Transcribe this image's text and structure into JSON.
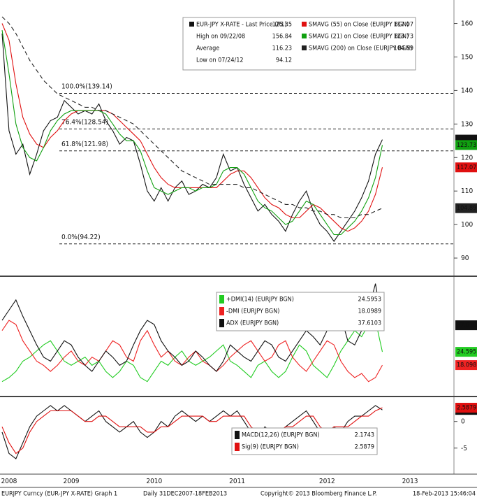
{
  "chart_data": [
    {
      "type": "line",
      "ylim": [
        85,
        167
      ],
      "yticks": [
        90,
        100,
        110,
        120,
        130,
        140,
        150,
        160
      ],
      "series": [
        {
          "name": "EUR-JPY X-RATE - Last Price (R1)",
          "color": "#111111",
          "values": [
            157,
            128,
            121,
            124,
            115,
            121,
            128,
            131,
            132,
            137,
            135,
            133,
            134,
            133,
            136,
            131,
            128,
            124,
            126,
            125,
            118,
            110,
            107,
            111,
            107,
            111,
            113,
            109,
            110,
            112,
            111,
            114,
            121,
            116,
            117,
            112,
            108,
            104,
            106,
            103,
            101,
            98,
            103,
            107,
            110,
            104,
            100,
            98,
            95,
            98,
            101,
            104,
            108,
            113,
            121,
            125.35,
            null,
            null,
            null,
            null,
            null,
            null,
            null,
            null,
            null,
            null
          ]
        },
        {
          "name": "SMAVG (55) on Close (EURJPY BGN)",
          "color": "#e01010",
          "values": [
            160,
            155,
            142,
            132,
            127,
            124,
            123,
            126,
            128,
            131,
            133,
            134,
            134,
            134,
            134,
            134,
            133,
            131,
            129,
            127,
            125,
            121,
            117,
            114,
            112,
            111,
            111,
            111,
            111,
            111,
            111,
            111,
            113,
            115,
            116,
            116,
            114,
            111,
            108,
            106,
            105,
            103,
            102,
            102,
            104,
            106,
            105,
            103,
            101,
            99,
            98,
            99,
            101,
            104,
            109,
            117.07,
            null,
            null,
            null,
            null,
            null,
            null,
            null,
            null,
            null,
            null
          ]
        },
        {
          "name": "SMAVG (21) on Close (EURJPY BGN)",
          "color": "#10a010",
          "values": [
            158,
            145,
            130,
            123,
            120,
            119,
            123,
            128,
            131,
            133,
            134,
            134,
            134,
            134,
            134,
            133,
            130,
            127,
            125,
            125,
            122,
            116,
            111,
            110,
            109,
            110,
            111,
            111,
            110,
            111,
            111,
            112,
            116,
            117,
            117,
            115,
            111,
            107,
            105,
            104,
            102,
            100,
            101,
            104,
            107,
            106,
            103,
            100,
            97,
            97,
            99,
            101,
            104,
            108,
            114,
            123.73,
            null,
            null,
            null,
            null,
            null,
            null,
            null,
            null,
            null,
            null
          ]
        },
        {
          "name": "SMAVG (200) on Close (EURJPY BGN)",
          "color": "#222222",
          "dash": true,
          "values": [
            162,
            160,
            157,
            153,
            149,
            146,
            143,
            141,
            139,
            138,
            137,
            136,
            135,
            135,
            134,
            134,
            133,
            132,
            131,
            130,
            128,
            126,
            124,
            122,
            120,
            118,
            116,
            115,
            114,
            113,
            112,
            112,
            112,
            112,
            112,
            111,
            111,
            110,
            109,
            108,
            107,
            106,
            106,
            105,
            105,
            104,
            104,
            103,
            103,
            102,
            102,
            102,
            103,
            103,
            104,
            104.89,
            null,
            null,
            null,
            null,
            null,
            null,
            null,
            null,
            null,
            null
          ]
        }
      ],
      "stats": [
        {
          "label": "High on 09/22/08",
          "value": 156.84
        },
        {
          "label": "Average",
          "value": 116.23
        },
        {
          "label": "Low on 07/24/12",
          "value": 94.12
        }
      ],
      "levels": [
        {
          "value": 139.14,
          "label": "100.0%(139.14)"
        },
        {
          "value": 128.54,
          "label": "76.4%(128.54)"
        },
        {
          "value": 121.98,
          "label": "61.8%(121.98)"
        },
        {
          "value": 94.22,
          "label": "0.0%(94.22)"
        }
      ]
    },
    {
      "type": "line",
      "ylim": [
        3.4,
        60.6
      ],
      "series": [
        {
          "name": "+DMI(14) (EURJPY BGN)",
          "color": "#22cc22",
          "values": [
            10,
            12,
            15,
            20,
            22,
            25,
            28,
            30,
            25,
            20,
            18,
            20,
            22,
            18,
            20,
            15,
            12,
            15,
            20,
            18,
            12,
            10,
            15,
            20,
            18,
            22,
            25,
            20,
            18,
            20,
            22,
            25,
            28,
            20,
            18,
            15,
            12,
            18,
            20,
            15,
            12,
            15,
            22,
            28,
            25,
            18,
            15,
            12,
            18,
            25,
            30,
            35,
            32,
            38,
            40,
            24.5953,
            null,
            null,
            null,
            null,
            null,
            null,
            null,
            null,
            null,
            null
          ]
        },
        {
          "name": "-DMI (EURJPY BGN)",
          "color": "#ee2222",
          "values": [
            35,
            40,
            38,
            30,
            25,
            20,
            18,
            15,
            18,
            22,
            25,
            20,
            18,
            22,
            20,
            25,
            30,
            28,
            22,
            20,
            30,
            35,
            28,
            22,
            25,
            20,
            18,
            22,
            25,
            20,
            18,
            15,
            18,
            22,
            25,
            28,
            30,
            25,
            20,
            22,
            28,
            30,
            22,
            18,
            15,
            20,
            25,
            30,
            28,
            20,
            15,
            12,
            14,
            10,
            12,
            18.0989,
            null,
            null,
            null,
            null,
            null,
            null,
            null,
            null,
            null,
            null
          ]
        },
        {
          "name": "ADX (EURJPY BGN)",
          "color": "#111111",
          "values": [
            40,
            45,
            50,
            42,
            35,
            28,
            22,
            20,
            25,
            30,
            28,
            22,
            18,
            15,
            20,
            25,
            22,
            18,
            20,
            28,
            35,
            40,
            38,
            30,
            25,
            22,
            18,
            20,
            25,
            22,
            18,
            15,
            20,
            28,
            25,
            22,
            20,
            25,
            30,
            28,
            22,
            20,
            25,
            30,
            35,
            32,
            28,
            35,
            50,
            42,
            30,
            28,
            35,
            45,
            58,
            37.6103,
            null,
            null,
            null,
            null,
            null,
            null,
            null,
            null,
            null,
            null
          ]
        }
      ]
    },
    {
      "type": "line",
      "ylim": [
        -9.5,
        4.3
      ],
      "yticks": [
        0,
        -5
      ],
      "categories": [
        null,
        "2008",
        null,
        null,
        null,
        null,
        null,
        null,
        null,
        null,
        "2009",
        null,
        null,
        null,
        null,
        null,
        null,
        null,
        null,
        null,
        null,
        null,
        "2010",
        null,
        null,
        null,
        null,
        null,
        null,
        null,
        null,
        null,
        null,
        null,
        "2011",
        null,
        null,
        null,
        null,
        null,
        null,
        null,
        null,
        null,
        null,
        null,
        null,
        "2012",
        null,
        null,
        null,
        null,
        null,
        null,
        null,
        null,
        null,
        null,
        null,
        "2013",
        null,
        null,
        null,
        null,
        null,
        null
      ],
      "series": [
        {
          "name": "MACD(12,26) (EURJPY BGN)",
          "color": "#111111",
          "values": [
            -2,
            -6,
            -7,
            -4,
            -1,
            1,
            2,
            3,
            2,
            3,
            2,
            1,
            0,
            1,
            2,
            0,
            -1,
            -2,
            -1,
            0,
            -2,
            -3,
            -2,
            0,
            -1,
            1,
            2,
            1,
            0,
            1,
            0,
            1,
            2,
            1,
            2,
            0,
            -2,
            -3,
            -1,
            -2,
            -2,
            -1,
            0,
            1,
            2,
            0,
            -2,
            -2,
            -1,
            -2,
            0,
            1,
            1,
            2,
            3,
            2.1743,
            null,
            null,
            null,
            null,
            null,
            null,
            null,
            null,
            null,
            null
          ]
        },
        {
          "name": "Sig(9) (EURJPY BGN)",
          "color": "#e01010",
          "values": [
            -1,
            -4,
            -6,
            -5,
            -2,
            0,
            1,
            2,
            2,
            2,
            2,
            1,
            0,
            0,
            1,
            1,
            0,
            -1,
            -1,
            -1,
            -1,
            -2,
            -2,
            -1,
            -1,
            0,
            1,
            1,
            1,
            1,
            0,
            0,
            1,
            1,
            1,
            1,
            -1,
            -2,
            -2,
            -2,
            -2,
            -1,
            -1,
            0,
            1,
            1,
            -1,
            -2,
            -1,
            -1,
            -1,
            0,
            1,
            1,
            2,
            2.5879,
            null,
            null,
            null,
            null,
            null,
            null,
            null,
            null,
            null,
            null
          ]
        }
      ]
    }
  ],
  "footer": [
    "EURJPY Curncy (EUR-JPY X-RATE) Graph 1",
    "Daily 31DEC2007-18FEB2013",
    "Copyright© 2013 Bloomberg Finance L.P.",
    "18-Feb-2013 15:46:04"
  ]
}
